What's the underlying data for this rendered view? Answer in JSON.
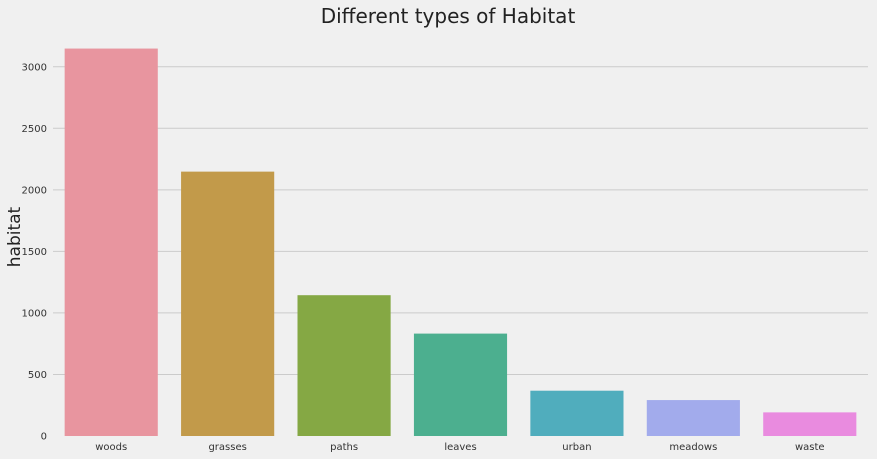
{
  "chart_data": {
    "type": "bar",
    "title": "Different types of Habitat",
    "xlabel": "",
    "ylabel": "habitat",
    "categories": [
      "woods",
      "grasses",
      "paths",
      "leaves",
      "urban",
      "meadows",
      "waste"
    ],
    "values": [
      3148,
      2148,
      1144,
      832,
      368,
      292,
      192
    ],
    "colors": [
      "#e8959f",
      "#c29a4a",
      "#85a844",
      "#4caf8f",
      "#50adbd",
      "#a2abec",
      "#e98bdf"
    ],
    "ylim": [
      0,
      3250
    ],
    "yticks": [
      0,
      500,
      1000,
      1500,
      2000,
      2500,
      3000
    ],
    "grid": true,
    "legend": "none"
  }
}
